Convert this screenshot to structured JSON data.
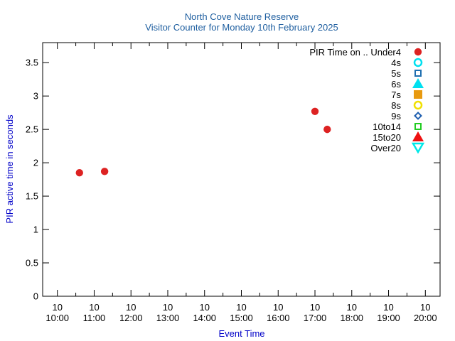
{
  "chart_data": {
    "type": "scatter",
    "title": "North Cove Nature Reserve",
    "subtitle": "Visitor Counter for Monday 10th February 2025",
    "xlabel": "Event Time",
    "ylabel": "PIR active time in seconds",
    "x_tick_labels": [
      {
        "day": "10",
        "time": "10:00"
      },
      {
        "day": "10",
        "time": "11:00"
      },
      {
        "day": "10",
        "time": "12:00"
      },
      {
        "day": "10",
        "time": "13:00"
      },
      {
        "day": "10",
        "time": "14:00"
      },
      {
        "day": "10",
        "time": "15:00"
      },
      {
        "day": "10",
        "time": "16:00"
      },
      {
        "day": "10",
        "time": "17:00"
      },
      {
        "day": "10",
        "time": "18:00"
      },
      {
        "day": "10",
        "time": "19:00"
      },
      {
        "day": "10",
        "time": "20:00"
      }
    ],
    "xlim": [
      "09:36",
      "20:24"
    ],
    "y_ticks": [
      0,
      0.5,
      1,
      1.5,
      2,
      2.5,
      3,
      3.5
    ],
    "ylim": [
      0,
      3.8
    ],
    "grid": false,
    "legend_position": "top-right",
    "series": [
      {
        "name": "PIR Time on .. Under4",
        "marker": "filled-circle",
        "color": "#dd2222",
        "points": [
          {
            "x": "10:36",
            "y": 1.85
          },
          {
            "x": "11:17",
            "y": 1.87
          },
          {
            "x": "17:00",
            "y": 2.77
          },
          {
            "x": "17:20",
            "y": 2.5
          }
        ]
      },
      {
        "name": "4s",
        "marker": "open-circle",
        "color": "#00e0f0",
        "points": []
      },
      {
        "name": "5s",
        "marker": "open-square",
        "color": "#1f6fb0",
        "points": []
      },
      {
        "name": "6s",
        "marker": "filled-triangle-up",
        "color": "#00e0f0",
        "points": []
      },
      {
        "name": "7s",
        "marker": "filled-square",
        "color": "#e89a10",
        "points": []
      },
      {
        "name": "8s",
        "marker": "open-circle",
        "color": "#f0e000",
        "points": []
      },
      {
        "name": "9s",
        "marker": "open-diamond",
        "color": "#1f5fb0",
        "points": []
      },
      {
        "name": "10to14",
        "marker": "open-square",
        "color": "#22cc22",
        "points": []
      },
      {
        "name": "15to20",
        "marker": "filled-triangle-up",
        "color": "#ee1111",
        "points": []
      },
      {
        "name": "Over20",
        "marker": "open-triangle-down",
        "color": "#00e8e8",
        "points": []
      }
    ]
  }
}
